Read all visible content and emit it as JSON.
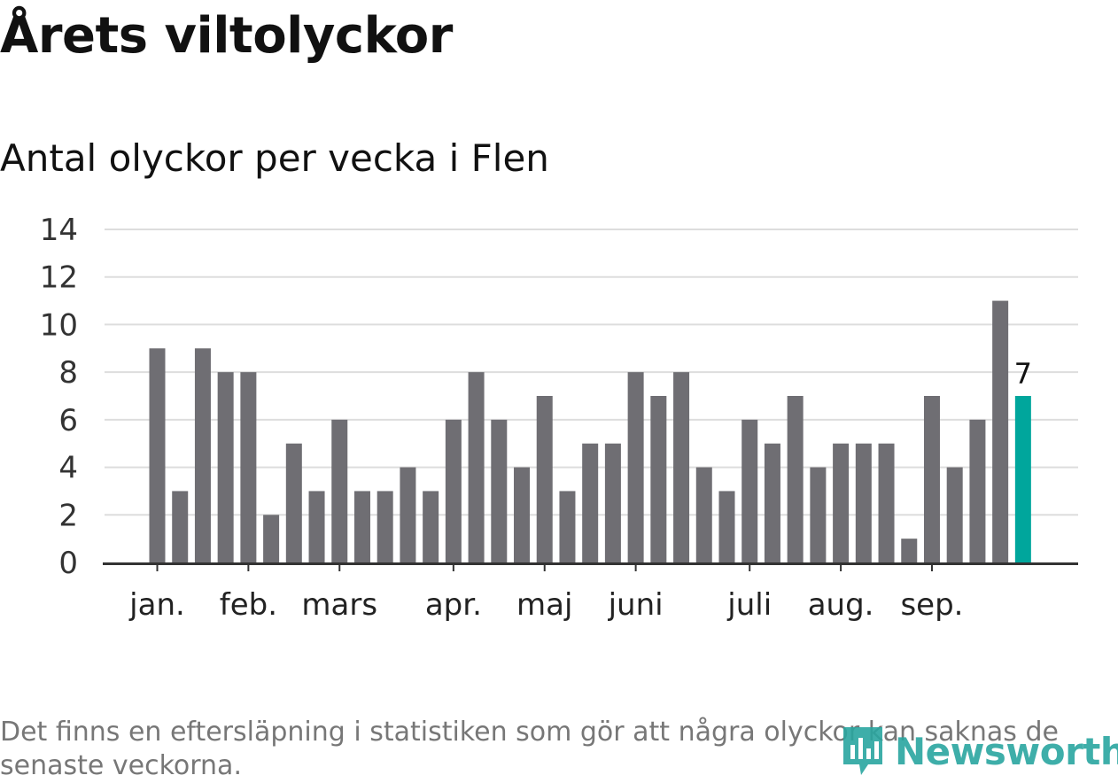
{
  "title": "Årets viltolyckor",
  "subtitle": "Antal olyckor per vecka i Flen",
  "footnote": "Det finns en eftersläpning i statistiken som gör att några olyckor kan saknas de senaste veckorna.",
  "logo_text": "Newsworthy",
  "colors": {
    "bar": "#6f6e73",
    "highlight": "#00a69c",
    "grid": "#dddddd",
    "axis": "#333333",
    "logo": "#2aa6a0"
  },
  "chart_data": {
    "type": "bar",
    "values": [
      9,
      3,
      9,
      8,
      8,
      2,
      5,
      3,
      6,
      3,
      3,
      4,
      3,
      6,
      8,
      6,
      4,
      7,
      3,
      5,
      5,
      8,
      7,
      8,
      4,
      3,
      6,
      5,
      7,
      4,
      5,
      5,
      5,
      1,
      7,
      4,
      6,
      11,
      7
    ],
    "highlight_index": 38,
    "highlight_label": "7",
    "ylim": [
      0,
      14
    ],
    "y_ticks": [
      0,
      2,
      4,
      6,
      8,
      10,
      12,
      14
    ],
    "month_labels": [
      {
        "label": "jan.",
        "bar_index": 0
      },
      {
        "label": "feb.",
        "bar_index": 4
      },
      {
        "label": "mars",
        "bar_index": 8
      },
      {
        "label": "apr.",
        "bar_index": 13
      },
      {
        "label": "maj",
        "bar_index": 17
      },
      {
        "label": "juni",
        "bar_index": 21
      },
      {
        "label": "juli",
        "bar_index": 26
      },
      {
        "label": "aug.",
        "bar_index": 30
      },
      {
        "label": "sep.",
        "bar_index": 34
      }
    ],
    "grid": true,
    "legend": "none"
  }
}
